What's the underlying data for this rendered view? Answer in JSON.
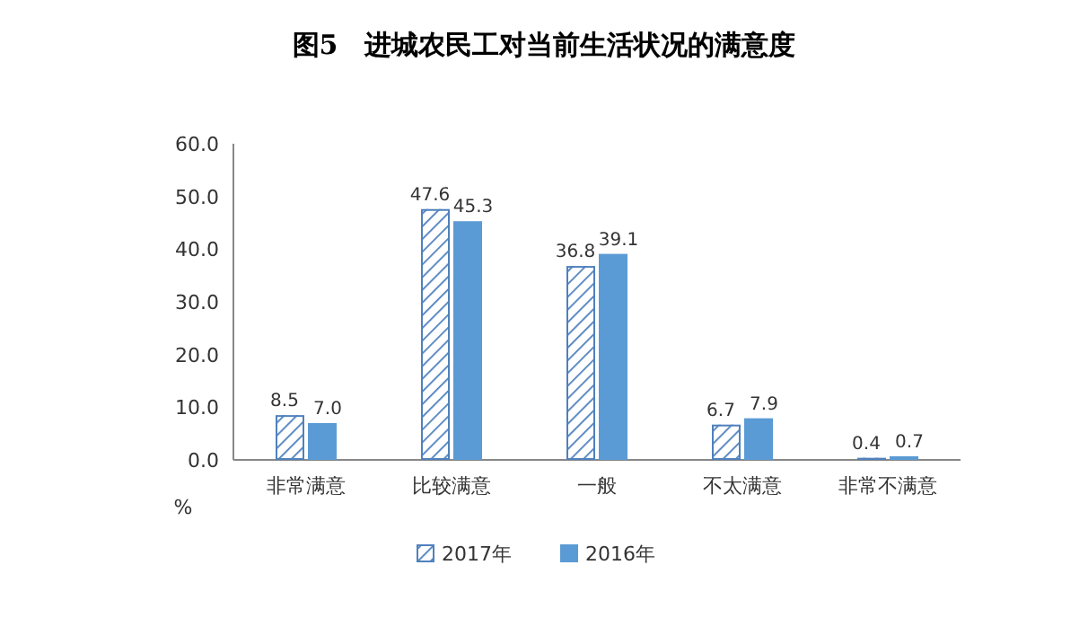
{
  "chart_data": {
    "type": "bar",
    "title": "图5　进城农民工对当前生活状况的满意度",
    "ylabel": "%",
    "categories": [
      "非常满意",
      "比较满意",
      "一般",
      "不太满意",
      "非常不满意"
    ],
    "series": [
      {
        "name": "2017年",
        "color": "#4f81bd",
        "values": [
          8.5,
          47.6,
          36.8,
          6.7,
          0.4
        ],
        "value_labels": [
          "8.5",
          "47.6",
          "36.8",
          "6.7",
          "0.4"
        ]
      },
      {
        "name": "2016年",
        "color": "#5b9bd5",
        "values": [
          7.0,
          45.3,
          39.1,
          7.9,
          0.7
        ],
        "value_labels": [
          "7.0",
          "45.3",
          "39.1",
          "7.9",
          "0.7"
        ]
      }
    ],
    "ylim": [
      0,
      60
    ],
    "yticks": [
      {
        "value": 0,
        "label": "0.0"
      },
      {
        "value": 10,
        "label": "10.0"
      },
      {
        "value": 20,
        "label": "20.0"
      },
      {
        "value": 30,
        "label": "30.0"
      },
      {
        "value": 40,
        "label": "40.0"
      },
      {
        "value": 50,
        "label": "50.0"
      },
      {
        "value": 60,
        "label": "60.0"
      }
    ],
    "grid": false,
    "legend": "bottom"
  }
}
